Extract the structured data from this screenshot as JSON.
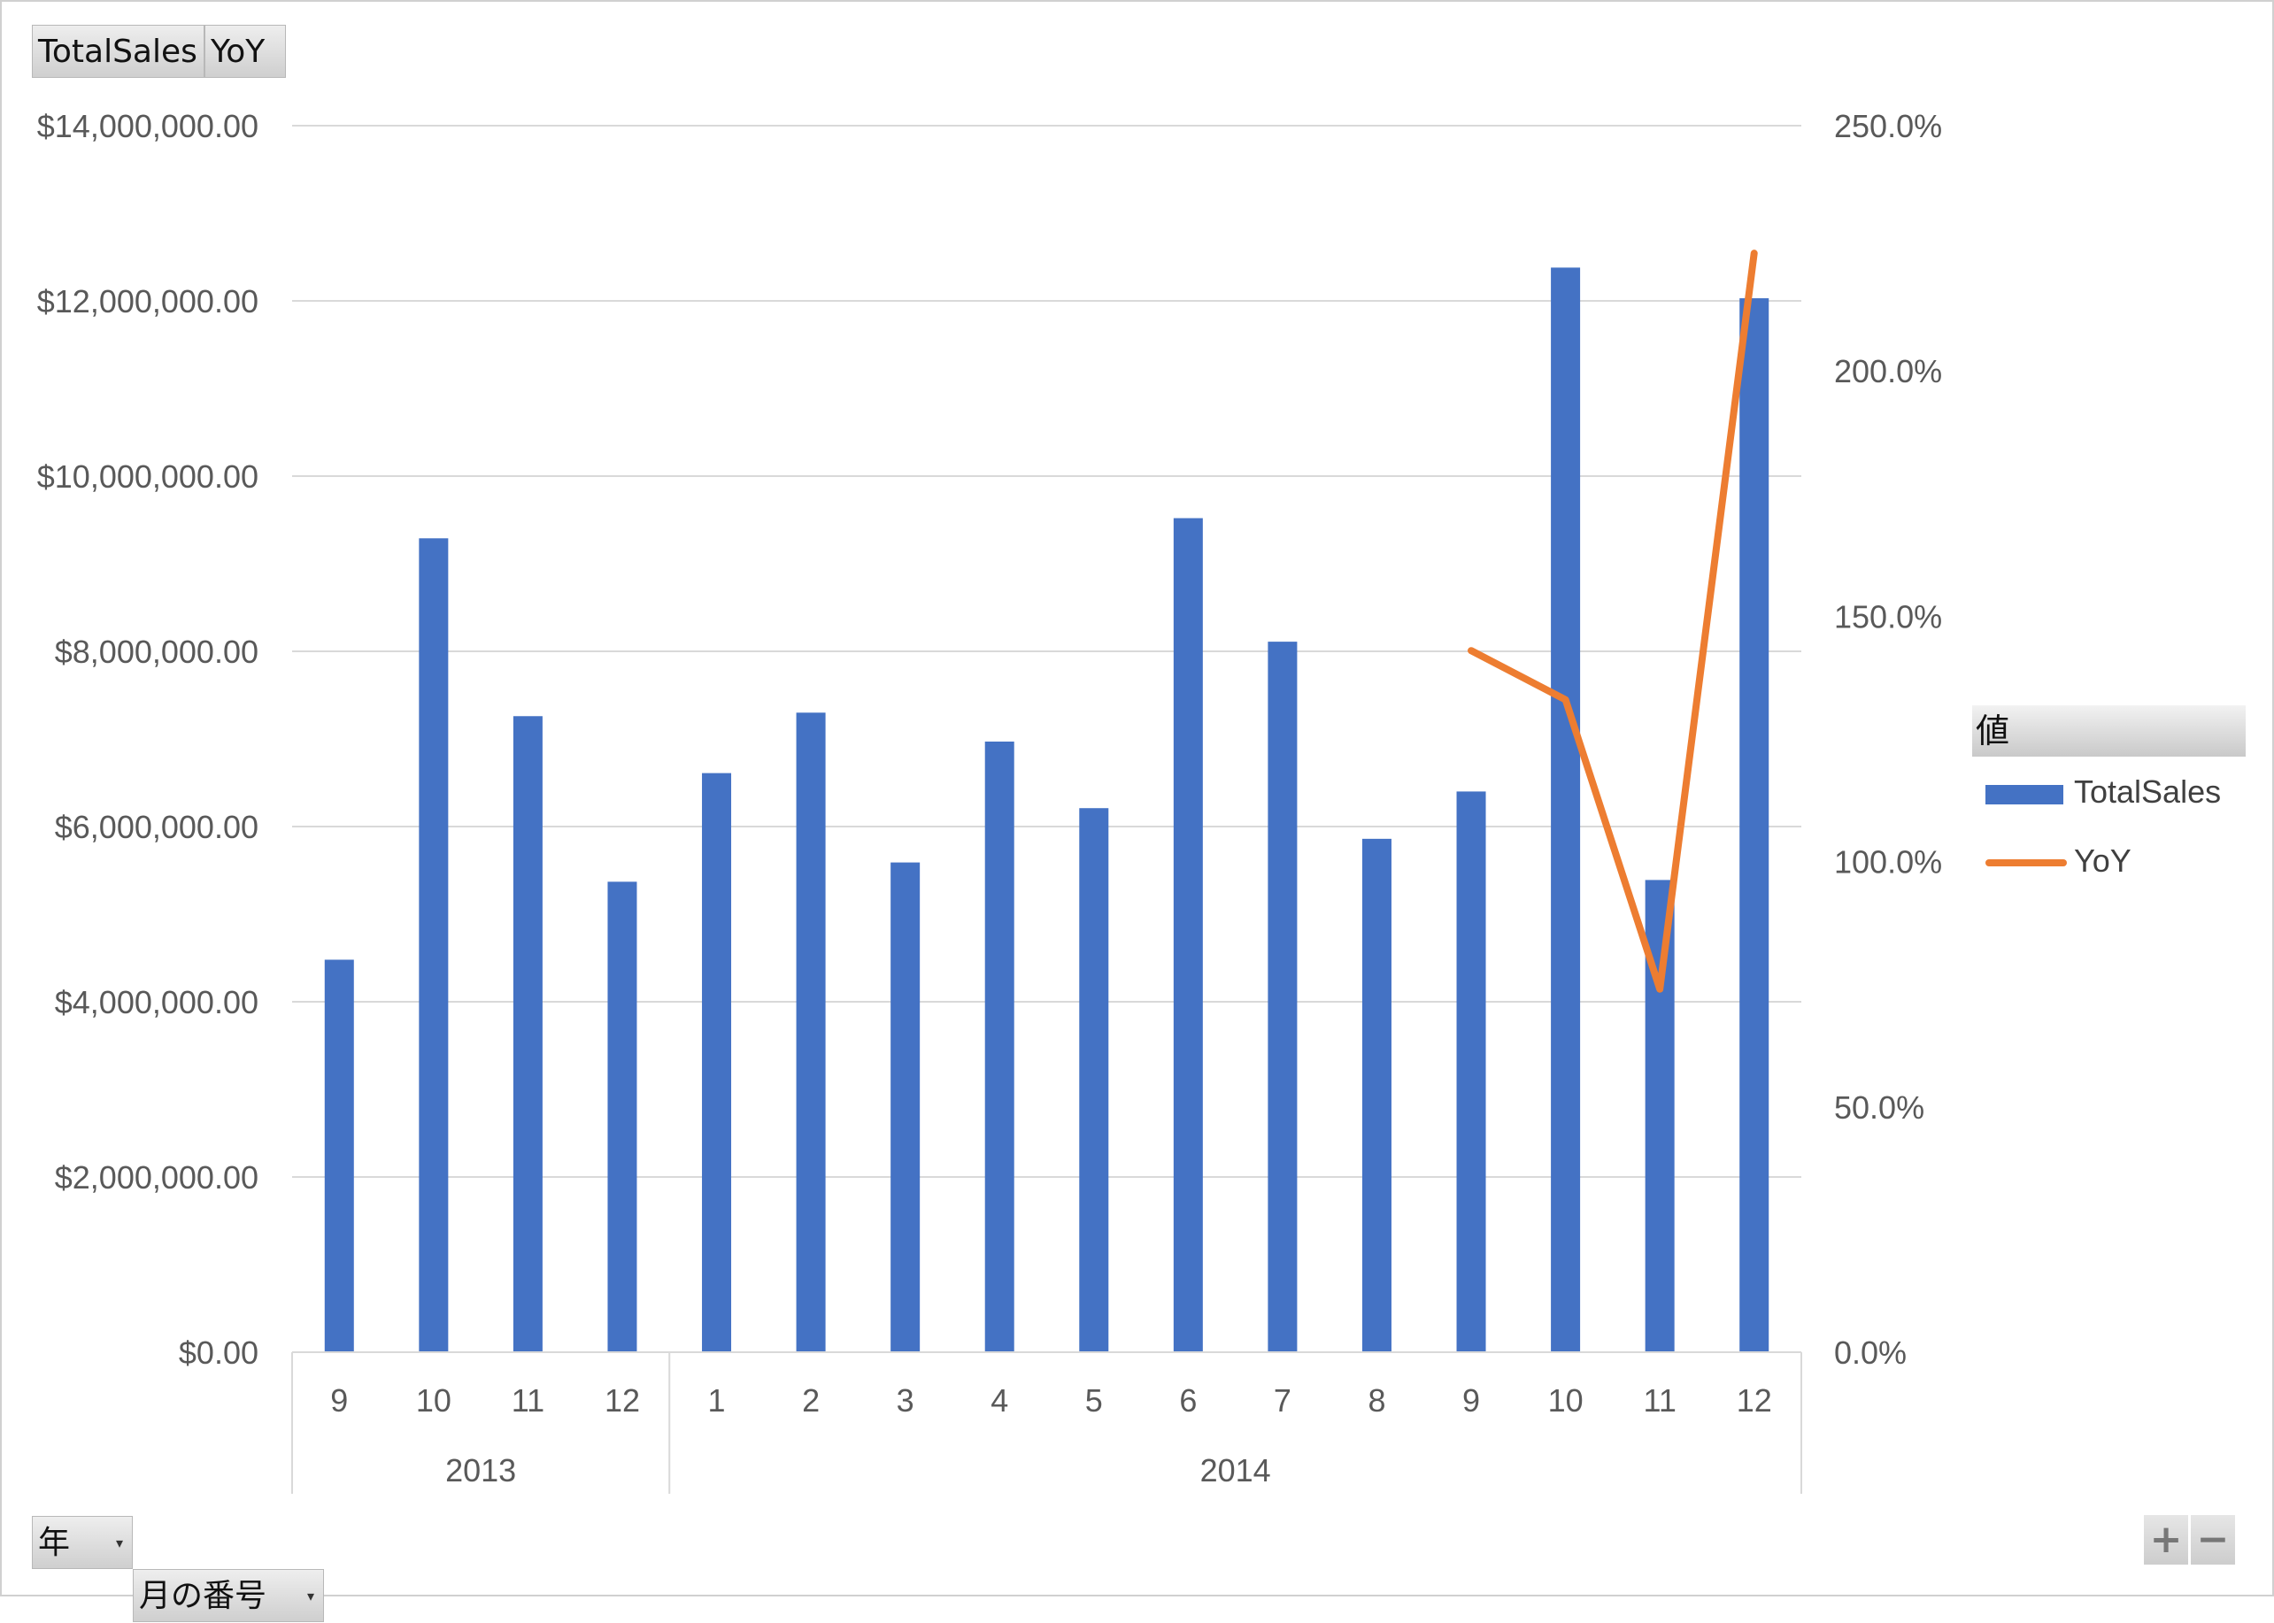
{
  "field_buttons": {
    "value1": "TotalSales",
    "value2": "YoY"
  },
  "axis_buttons": {
    "year": "年",
    "month": "月の番号"
  },
  "legend": {
    "title": "値",
    "items": [
      {
        "label": "TotalSales",
        "color": "#4472C4",
        "kind": "bar"
      },
      {
        "label": "YoY",
        "color": "#ED7D31",
        "kind": "line"
      }
    ]
  },
  "zoom": {
    "plus": "+",
    "minus": "−"
  },
  "chart_data": {
    "type": "bar",
    "categories": [
      "9",
      "10",
      "11",
      "12",
      "1",
      "2",
      "3",
      "4",
      "5",
      "6",
      "7",
      "8",
      "9",
      "10",
      "11",
      "12"
    ],
    "groups": [
      {
        "label": "2013",
        "count": 4
      },
      {
        "label": "2014",
        "count": 12
      }
    ],
    "series": [
      {
        "name": "TotalSales",
        "type": "bar",
        "axis": "left",
        "color": "#4472C4",
        "values": [
          4480000,
          9290000,
          7260000,
          5370000,
          6610000,
          7300000,
          5590000,
          6970000,
          6210000,
          9520000,
          8110000,
          5860000,
          6400000,
          12380000,
          5390000,
          12030000
        ]
      },
      {
        "name": "YoY",
        "type": "line",
        "axis": "right",
        "color": "#ED7D31",
        "values": [
          null,
          null,
          null,
          null,
          null,
          null,
          null,
          null,
          null,
          null,
          null,
          null,
          1.43,
          1.33,
          0.74,
          2.24
        ]
      }
    ],
    "y_left": {
      "min": 0,
      "max": 14000000,
      "ticks": [
        0,
        2000000,
        4000000,
        6000000,
        8000000,
        10000000,
        12000000,
        14000000
      ],
      "tick_labels": [
        "$0.00",
        "$2,000,000.00",
        "$4,000,000.00",
        "$6,000,000.00",
        "$8,000,000.00",
        "$10,000,000.00",
        "$12,000,000.00",
        "$14,000,000.00"
      ]
    },
    "y_right": {
      "min": 0,
      "max": 2.5,
      "ticks": [
        0,
        0.5,
        1.0,
        1.5,
        2.0,
        2.5
      ],
      "tick_labels": [
        "0.0%",
        "50.0%",
        "100.0%",
        "150.0%",
        "200.0%",
        "250.0%"
      ]
    },
    "grid": true,
    "legend_position": "right"
  }
}
